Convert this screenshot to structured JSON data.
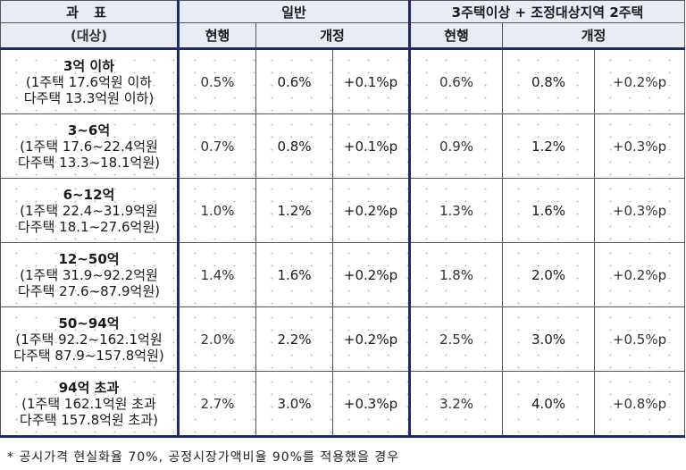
{
  "header": {
    "category_title": "과  표",
    "category_sub": "(대상)",
    "group_general": "일반",
    "group_multi": "3주택이상 + 조정대상지역 2주택",
    "col_current": "현행",
    "col_revised": "개정"
  },
  "rows": [
    {
      "title": "3억 이하",
      "line1": "(1주택 17.6억원 이하",
      "line2": "다주택 13.3억원 이하)",
      "g_cur": "0.5%",
      "g_new": "0.6%",
      "g_diff": "+0.1%p",
      "m_cur": "0.6%",
      "m_new": "0.8%",
      "m_diff": "+0.2%p"
    },
    {
      "title": "3~6억",
      "line1": "(1주택 17.6~22.4억원",
      "line2": "다주택 13.3~18.1억원)",
      "g_cur": "0.7%",
      "g_new": "0.8%",
      "g_diff": "+0.1%p",
      "m_cur": "0.9%",
      "m_new": "1.2%",
      "m_diff": "+0.3%p"
    },
    {
      "title": "6~12억",
      "line1": "(1주택 22.4~31.9억원",
      "line2": "다주택 18.1~27.6억원)",
      "g_cur": "1.0%",
      "g_new": "1.2%",
      "g_diff": "+0.2%p",
      "m_cur": "1.3%",
      "m_new": "1.6%",
      "m_diff": "+0.3%p"
    },
    {
      "title": "12~50억",
      "line1": "(1주택 31.9~92.2억원",
      "line2": "다주택 27.6~87.9억원)",
      "g_cur": "1.4%",
      "g_new": "1.6%",
      "g_diff": "+0.2%p",
      "m_cur": "1.8%",
      "m_new": "2.0%",
      "m_diff": "+0.2%p"
    },
    {
      "title": "50~94억",
      "line1": "(1주택 92.2~162.1억원",
      "line2": "다주택 87.9~157.8억원)",
      "g_cur": "2.0%",
      "g_new": "2.2%",
      "g_diff": "+0.2%p",
      "m_cur": "2.5%",
      "m_new": "3.0%",
      "m_diff": "+0.5%p"
    },
    {
      "title": "94억 초과",
      "line1": "(1주택 162.1억원 초과",
      "line2": "다주택 157.8억원 초과)",
      "g_cur": "2.7%",
      "g_new": "3.0%",
      "g_diff": "+0.3%p",
      "m_cur": "3.2%",
      "m_new": "4.0%",
      "m_diff": "+0.8%p"
    }
  ],
  "footnote": "* 공시가격 현실화율 70%, 공정시장가액비율 90%를 적용했을 경우",
  "colors": {
    "divider": "#1f2a6b",
    "header_bg": "#e9ecf4",
    "grid": "#555555"
  }
}
